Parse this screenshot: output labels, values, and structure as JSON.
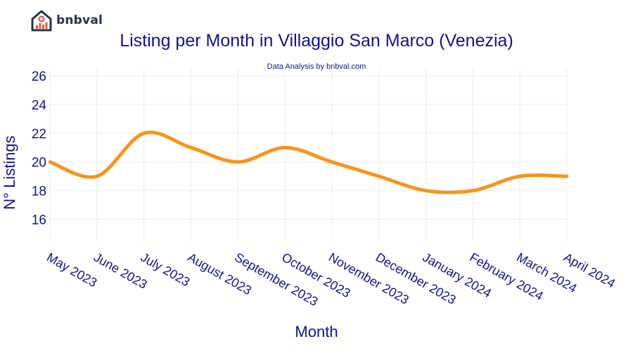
{
  "brand": {
    "name": "bnbval",
    "logo_icon": "house-chart-icon",
    "accent": "#e05a47",
    "dark": "#243447"
  },
  "chart_data": {
    "type": "line",
    "title": "Listing per Month in Villaggio San Marco (Venezia)",
    "subtitle": "Data Analysis by bnbval.com",
    "xlabel": "Month",
    "ylabel": "N° Listings",
    "categories": [
      "May 2023",
      "June 2023",
      "July 2023",
      "August 2023",
      "September 2023",
      "October 2023",
      "November 2023",
      "December 2023",
      "January 2024",
      "February 2024",
      "March 2024",
      "April 2024"
    ],
    "series": [
      {
        "name": "Listings",
        "values": [
          20,
          19,
          22,
          21,
          20,
          21,
          20,
          19,
          18,
          18,
          19,
          19
        ],
        "color": "#f7941d"
      }
    ],
    "ylim": [
      14.5,
      26.5
    ],
    "yticks": [
      16,
      18,
      20,
      22,
      24,
      26
    ],
    "grid": true,
    "line_shape": "spline",
    "text_color": "#10148c"
  }
}
